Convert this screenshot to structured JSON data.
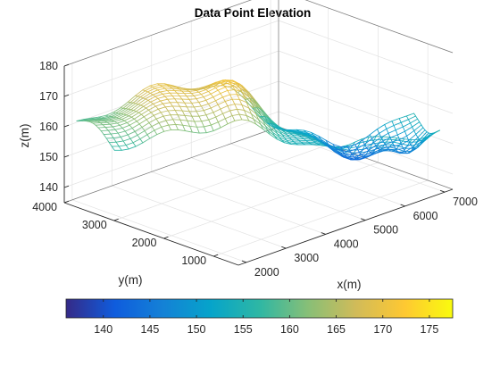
{
  "chart_data": {
    "type": "surface-mesh",
    "title": "Data Point Elevation",
    "xlabel": "x(m)",
    "ylabel": "y(m)",
    "zlabel": "z(m)",
    "xlim": [
      1800,
      7200
    ],
    "ylim": [
      500,
      4000
    ],
    "zlim": [
      135,
      180
    ],
    "x_ticks": [
      "2000",
      "3000",
      "4000",
      "5000",
      "6000",
      "7000"
    ],
    "y_ticks": [
      "1000",
      "2000",
      "3000",
      "4000"
    ],
    "z_ticks": [
      "140",
      "150",
      "160",
      "170",
      "180"
    ],
    "colorbar": {
      "colormap": "parula",
      "limits": [
        136,
        177.5
      ],
      "ticks": [
        "140",
        "145",
        "150",
        "155",
        "160",
        "165",
        "170",
        "175"
      ]
    },
    "grid": true,
    "surface_elevation_profile_along_ridge": {
      "description_units": "z(m)",
      "segments": [
        {
          "position": "near left",
          "z": 158
        },
        {
          "position": "upper left",
          "z": 163
        },
        {
          "position": "left ridge",
          "z": 166
        },
        {
          "position": "top ridge",
          "z": 172
        },
        {
          "position": "center",
          "z": 167
        },
        {
          "position": "valley",
          "z": 158
        },
        {
          "position": "right middle",
          "z": 154
        },
        {
          "position": "right peak",
          "z": 159
        },
        {
          "position": "far right low",
          "z": 139
        },
        {
          "position": "far right edge",
          "z": 142
        }
      ]
    }
  }
}
